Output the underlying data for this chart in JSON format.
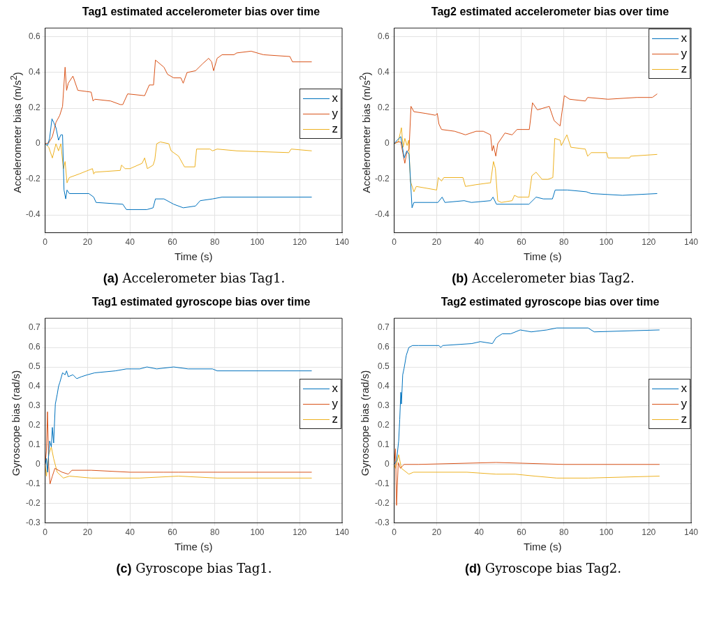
{
  "chart_data": [
    {
      "type": "line",
      "title": "Tag1 estimated accelerometer bias over time",
      "xlabel": "Time (s)",
      "ylabel": "Accelerometer bias (m/s$^{2}$)",
      "xlim": [
        0,
        140
      ],
      "xticks": [
        0,
        20,
        40,
        60,
        80,
        100,
        120,
        140
      ],
      "ylim": [
        -0.5,
        0.65
      ],
      "yticks": [
        -0.4,
        -0.2,
        0,
        0.2,
        0.4,
        0.6
      ],
      "grid": true,
      "legend": "right",
      "annotations": [
        "(a) Accelerometer bias Tag1."
      ],
      "series": [
        {
          "name": "x",
          "color": "#0072bd",
          "x": [
            0,
            1.1,
            2.1,
            3.2,
            4,
            5.1,
            6.3,
            7.4,
            8.2,
            8.9,
            9.7,
            10.3,
            11.4,
            20.6,
            22.9,
            24,
            36.6,
            38.3,
            48,
            50.9,
            52,
            56,
            60.6,
            65.1,
            70.9,
            73.1,
            78.9,
            83.4,
            92.6,
            125.7
          ],
          "values": [
            0,
            -0.01,
            0.03,
            0.14,
            0.12,
            0.09,
            0.02,
            0.05,
            0.05,
            -0.26,
            -0.31,
            -0.26,
            -0.28,
            -0.28,
            -0.3,
            -0.33,
            -0.34,
            -0.37,
            -0.37,
            -0.36,
            -0.31,
            -0.31,
            -0.34,
            -0.36,
            -0.35,
            -0.32,
            -0.31,
            -0.3,
            -0.3,
            -0.3
          ]
        },
        {
          "name": "y",
          "color": "#d95319",
          "x": [
            0,
            1.7,
            3.4,
            5.1,
            6.9,
            8.2,
            9.4,
            10.1,
            10.9,
            13.1,
            15.4,
            21.7,
            22.6,
            23.4,
            30.9,
            35.4,
            36.6,
            38.9,
            46.9,
            49.1,
            51.1,
            52,
            56,
            57.7,
            60.6,
            64,
            65.1,
            66.9,
            70.9,
            74.3,
            77.1,
            78.5,
            79.4,
            81.1,
            83.4,
            89,
            90.3,
            97.1,
            102.9,
            115.4,
            116.6,
            125.7
          ],
          "values": [
            0,
            0.005,
            0.04,
            0.12,
            0.16,
            0.21,
            0.43,
            0.3,
            0.34,
            0.38,
            0.3,
            0.29,
            0.24,
            0.25,
            0.24,
            0.22,
            0.22,
            0.28,
            0.27,
            0.33,
            0.33,
            0.47,
            0.43,
            0.39,
            0.37,
            0.37,
            0.34,
            0.4,
            0.41,
            0.45,
            0.48,
            0.46,
            0.41,
            0.48,
            0.5,
            0.5,
            0.51,
            0.52,
            0.5,
            0.49,
            0.46,
            0.46
          ]
        },
        {
          "name": "z",
          "color": "#edb120",
          "x": [
            0,
            1.7,
            3.4,
            5.1,
            6.3,
            7.4,
            8.6,
            9.4,
            10.3,
            11.4,
            16,
            22.3,
            22.9,
            23.4,
            35.4,
            36,
            37.7,
            40,
            45.7,
            46.9,
            48.2,
            50.9,
            51.7,
            52.6,
            54.3,
            58.3,
            59.4,
            62.9,
            65.7,
            70.6,
            71.4,
            77.7,
            78.9,
            81.1,
            90.3,
            114.9,
            116,
            125.7
          ],
          "values": [
            0,
            -0.02,
            -0.08,
            0,
            -0.04,
            0,
            -0.14,
            -0.1,
            -0.22,
            -0.19,
            -0.17,
            -0.14,
            -0.17,
            -0.16,
            -0.15,
            -0.12,
            -0.14,
            -0.14,
            -0.11,
            -0.08,
            -0.14,
            -0.12,
            -0.09,
            0,
            0.01,
            0,
            -0.04,
            -0.07,
            -0.13,
            -0.13,
            -0.03,
            -0.03,
            -0.04,
            -0.03,
            -0.04,
            -0.05,
            -0.03,
            -0.04
          ]
        }
      ]
    },
    {
      "type": "line",
      "title": "Tag2 estimated accelerometer bias over time",
      "xlabel": "Time (s)",
      "ylabel": "Accelerometer bias (m/s$^{2}$)",
      "xlim": [
        0,
        140
      ],
      "xticks": [
        0,
        20,
        40,
        60,
        80,
        100,
        120,
        140
      ],
      "ylim": [
        -0.5,
        0.65
      ],
      "yticks": [
        -0.4,
        -0.2,
        0,
        0.2,
        0.4,
        0.6
      ],
      "grid": true,
      "legend": "top right",
      "annotations": [
        "(b) Accelerometer bias Tag2."
      ],
      "series": [
        {
          "name": "x",
          "color": "#0072bd",
          "x": [
            0,
            1.4,
            3.1,
            4.7,
            5.9,
            7,
            8.4,
            9.3,
            20.6,
            22.6,
            23.9,
            33,
            36.4,
            45.4,
            46.6,
            48.2,
            56.7,
            63.5,
            66.9,
            70.3,
            74.6,
            75.9,
            81.6,
            90.6,
            92.9,
            107.6,
            124
          ],
          "values": [
            0,
            0.02,
            0.04,
            -0.08,
            -0.04,
            -0.06,
            -0.36,
            -0.33,
            -0.33,
            -0.3,
            -0.33,
            -0.32,
            -0.33,
            -0.32,
            -0.3,
            -0.34,
            -0.34,
            -0.34,
            -0.3,
            -0.31,
            -0.31,
            -0.26,
            -0.26,
            -0.27,
            -0.28,
            -0.29,
            -0.28
          ]
        },
        {
          "name": "y",
          "color": "#d95319",
          "x": [
            0,
            1.4,
            3.1,
            4.2,
            5,
            5.9,
            7,
            7.9,
            9.3,
            14.9,
            19.4,
            20.3,
            21.1,
            22.3,
            28.5,
            33.6,
            38.6,
            42,
            45.4,
            46.2,
            46.8,
            47.9,
            48.8,
            52.2,
            55.6,
            57.9,
            63.7,
            65.2,
            67.5,
            73.1,
            75.4,
            78.2,
            80.2,
            82.7,
            90.1,
            91.2,
            100.8,
            114.4,
            121.7,
            124
          ],
          "values": [
            0,
            0.01,
            0.01,
            -0.06,
            -0.11,
            -0.05,
            -0.03,
            0.21,
            0.18,
            0.17,
            0.16,
            0.17,
            0.11,
            0.08,
            0.07,
            0.05,
            0.07,
            0.07,
            0.05,
            -0.04,
            -0.01,
            -0.07,
            0,
            0.06,
            0.05,
            0.08,
            0.08,
            0.23,
            0.19,
            0.21,
            0.13,
            0.1,
            0.27,
            0.25,
            0.24,
            0.26,
            0.25,
            0.26,
            0.26,
            0.28
          ]
        },
        {
          "name": "z",
          "color": "#edb120",
          "x": [
            0,
            1.9,
            3.4,
            4.2,
            5,
            6.1,
            6.8,
            7.6,
            9.3,
            10.4,
            20,
            20.8,
            22.3,
            23.4,
            32.4,
            33.6,
            38.6,
            44.9,
            45.4,
            46.8,
            47.7,
            48.8,
            50.5,
            55.6,
            56.7,
            58.4,
            63.5,
            64.9,
            66.9,
            69.7,
            72.5,
            74.8,
            75.7,
            78.2,
            78.8,
            81.4,
            83.3,
            90.1,
            91.2,
            92.9,
            100.2,
            100.8,
            111,
            111.5,
            124
          ],
          "values": [
            0,
            0.01,
            0.09,
            -0.02,
            0.03,
            -0.01,
            0.02,
            -0.21,
            -0.27,
            -0.24,
            -0.26,
            -0.19,
            -0.21,
            -0.19,
            -0.19,
            -0.24,
            -0.23,
            -0.22,
            -0.22,
            -0.1,
            -0.14,
            -0.32,
            -0.33,
            -0.32,
            -0.29,
            -0.3,
            -0.3,
            -0.18,
            -0.16,
            -0.2,
            -0.2,
            -0.19,
            0.03,
            0.02,
            -0.01,
            0.05,
            -0.02,
            -0.03,
            -0.07,
            -0.05,
            -0.05,
            -0.08,
            -0.08,
            -0.07,
            -0.06
          ]
        }
      ]
    },
    {
      "type": "line",
      "title": "Tag1 estimated gyroscope bias over time",
      "xlabel": "Time (s)",
      "ylabel": "Gyroscope bias (rad/s)",
      "xlim": [
        0,
        140
      ],
      "xticks": [
        0,
        20,
        40,
        60,
        80,
        100,
        120,
        140
      ],
      "ylim": [
        -0.3,
        0.75
      ],
      "yticks": [
        -0.3,
        -0.2,
        -0.1,
        0,
        0.1,
        0.2,
        0.3,
        0.4,
        0.5,
        0.6,
        0.7
      ],
      "grid": true,
      "legend": "right",
      "annotations": [
        "(c) Gyroscope bias Tag1."
      ],
      "series": [
        {
          "name": "x",
          "color": "#0072bd",
          "x": [
            0,
            0.6,
            1.1,
            2.1,
            2.9,
            3.4,
            4,
            4.8,
            5.7,
            6.3,
            6.9,
            8.2,
            9.4,
            10.1,
            10.9,
            13.1,
            14.9,
            17.1,
            20,
            23.4,
            33.1,
            38.3,
            44.6,
            48,
            52.6,
            60.6,
            67.4,
            78.9,
            81.1,
            125.7
          ],
          "values": [
            0,
            0.03,
            -0.04,
            0.12,
            0.09,
            0.19,
            0.11,
            0.31,
            0.36,
            0.4,
            0.42,
            0.47,
            0.46,
            0.48,
            0.45,
            0.46,
            0.44,
            0.45,
            0.46,
            0.47,
            0.48,
            0.49,
            0.49,
            0.5,
            0.49,
            0.5,
            0.49,
            0.49,
            0.48,
            0.48
          ]
        },
        {
          "name": "y",
          "color": "#d95319",
          "x": [
            0,
            0.6,
            1.1,
            1.7,
            2.3,
            3.4,
            4.6,
            8,
            10.9,
            12.6,
            21.7,
            40,
            56,
            62.9,
            81.1,
            125.7
          ],
          "values": [
            0,
            0.07,
            0.27,
            -0.01,
            -0.1,
            -0.06,
            -0.02,
            -0.04,
            -0.05,
            -0.03,
            -0.03,
            -0.04,
            -0.04,
            -0.04,
            -0.04,
            -0.04
          ]
        },
        {
          "name": "z",
          "color": "#edb120",
          "x": [
            0,
            0.6,
            1.7,
            2.9,
            4,
            5.7,
            8.6,
            11.4,
            21.7,
            44.6,
            62.9,
            81.1,
            125.7
          ],
          "values": [
            0,
            -0.06,
            0.05,
            0.09,
            0.03,
            -0.04,
            -0.07,
            -0.06,
            -0.07,
            -0.07,
            -0.06,
            -0.07,
            -0.07
          ]
        }
      ]
    },
    {
      "type": "line",
      "title": "Tag2 estimated gyroscope bias over time",
      "xlabel": "Time (s)",
      "ylabel": "Gyroscope bias (rad/s)",
      "xlim": [
        0,
        140
      ],
      "xticks": [
        0,
        20,
        40,
        60,
        80,
        100,
        120,
        140
      ],
      "ylim": [
        -0.3,
        0.75
      ],
      "yticks": [
        -0.3,
        -0.2,
        -0.1,
        0,
        0.1,
        0.2,
        0.3,
        0.4,
        0.5,
        0.6,
        0.7
      ],
      "grid": true,
      "legend": "right",
      "annotations": [
        "(d) Gyroscope bias Tag2."
      ],
      "series": [
        {
          "name": "x",
          "color": "#0072bd",
          "x": [
            0,
            1.1,
            2.1,
            2.6,
            3.1,
            3.4,
            4,
            4.6,
            5.7,
            6.9,
            8.6,
            11.4,
            21.1,
            21.9,
            22.9,
            36.6,
            40.6,
            46.3,
            48,
            50.9,
            54.9,
            59.4,
            64.6,
            72,
            76.6,
            91.4,
            94.3,
            125.1
          ],
          "values": [
            0,
            0.02,
            0.12,
            0.23,
            0.37,
            0.31,
            0.46,
            0.49,
            0.56,
            0.6,
            0.61,
            0.61,
            0.61,
            0.6,
            0.61,
            0.62,
            0.63,
            0.62,
            0.65,
            0.67,
            0.67,
            0.69,
            0.68,
            0.69,
            0.7,
            0.7,
            0.68,
            0.69
          ]
        },
        {
          "name": "y",
          "color": "#d95319",
          "x": [
            0,
            0.6,
            1.1,
            1.9,
            2.9,
            4.6,
            11.4,
            48,
            80,
            125.1
          ],
          "values": [
            0,
            0.08,
            -0.21,
            0.01,
            -0.02,
            0,
            0,
            0.01,
            0,
            0
          ]
        },
        {
          "name": "z",
          "color": "#edb120",
          "x": [
            0,
            0.6,
            2.1,
            3.4,
            6.9,
            9.1,
            34.3,
            48,
            57.1,
            66.3,
            76.6,
            91.4,
            125.1
          ],
          "values": [
            0,
            -0.02,
            0.05,
            -0.02,
            -0.05,
            -0.04,
            -0.04,
            -0.05,
            -0.05,
            -0.06,
            -0.07,
            -0.07,
            -0.06
          ]
        }
      ]
    }
  ]
}
